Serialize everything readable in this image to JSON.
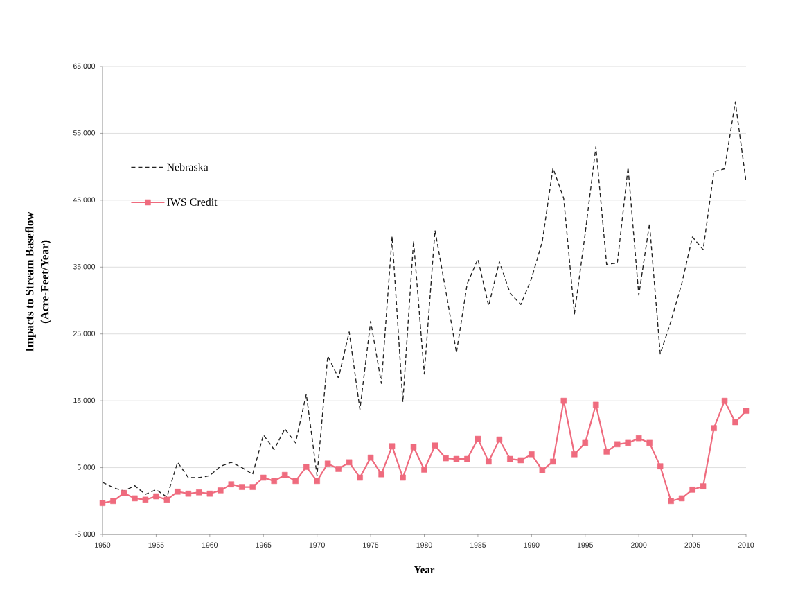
{
  "chart_data": {
    "type": "line",
    "xlabel": "Year",
    "ylabel": "Impacts to Stream Baseflow (Acre-Feet/Year)",
    "x": [
      1950,
      1951,
      1952,
      1953,
      1954,
      1955,
      1956,
      1957,
      1958,
      1959,
      1960,
      1961,
      1962,
      1963,
      1964,
      1965,
      1966,
      1967,
      1968,
      1969,
      1970,
      1971,
      1972,
      1973,
      1974,
      1975,
      1976,
      1977,
      1978,
      1979,
      1980,
      1981,
      1982,
      1983,
      1984,
      1985,
      1986,
      1987,
      1988,
      1989,
      1990,
      1991,
      1992,
      1993,
      1994,
      1995,
      1996,
      1997,
      1998,
      1999,
      2000,
      2001,
      2002,
      2003,
      2004,
      2005,
      2006,
      2007,
      2008,
      2009,
      2010
    ],
    "series": [
      {
        "name": "Nebraska",
        "color": "#222222",
        "line_style": "dashed",
        "values": [
          2800,
          2000,
          1500,
          2300,
          1000,
          1700,
          600,
          5800,
          3500,
          3500,
          3800,
          5200,
          5800,
          5000,
          4000,
          9900,
          7700,
          10800,
          8700,
          16000,
          3800,
          21700,
          18400,
          25300,
          13700,
          26900,
          17600,
          39600,
          14800,
          38900,
          19000,
          40500,
          31500,
          22200,
          32500,
          36200,
          29200,
          35800,
          31100,
          29400,
          33300,
          38800,
          49800,
          45300,
          28000,
          40000,
          53000,
          35400,
          35600,
          49900,
          30800,
          41500,
          22000,
          26900,
          32500,
          39500,
          37600,
          49300,
          49700,
          59700,
          47800
        ]
      },
      {
        "name": "IWS Credit",
        "color": "#ef6b7e",
        "line_style": "solid",
        "marker": "square",
        "values": [
          -300,
          0,
          1200,
          400,
          200,
          700,
          200,
          1400,
          1100,
          1300,
          1100,
          1600,
          2500,
          2100,
          2100,
          3500,
          3000,
          3900,
          3000,
          5100,
          3000,
          5600,
          4800,
          5800,
          3500,
          6500,
          4000,
          8200,
          3500,
          8100,
          4700,
          8300,
          6400,
          6300,
          6300,
          9300,
          5900,
          9200,
          6300,
          6100,
          7000,
          4600,
          5900,
          15000,
          7000,
          8700,
          14400,
          7400,
          8500,
          8700,
          9400,
          8700,
          5200,
          0,
          400,
          1700,
          2200,
          10900,
          15000,
          11800,
          13500
        ]
      }
    ],
    "xlim": [
      1950,
      2010
    ],
    "ylim": [
      -5000,
      65000
    ],
    "xticks": [
      1950,
      1955,
      1960,
      1965,
      1970,
      1975,
      1980,
      1985,
      1990,
      1995,
      2000,
      2005,
      2010
    ],
    "yticks": [
      {
        "value": -5000,
        "label": "-5,000"
      },
      {
        "value": 5000,
        "label": "5,000"
      },
      {
        "value": 15000,
        "label": "15,000"
      },
      {
        "value": 25000,
        "label": "25,000"
      },
      {
        "value": 35000,
        "label": "35,000"
      },
      {
        "value": 45000,
        "label": "45,000"
      },
      {
        "value": 55000,
        "label": "55,000"
      },
      {
        "value": 65000,
        "label": "65,000"
      }
    ],
    "grid": "y",
    "legend": "top left"
  }
}
